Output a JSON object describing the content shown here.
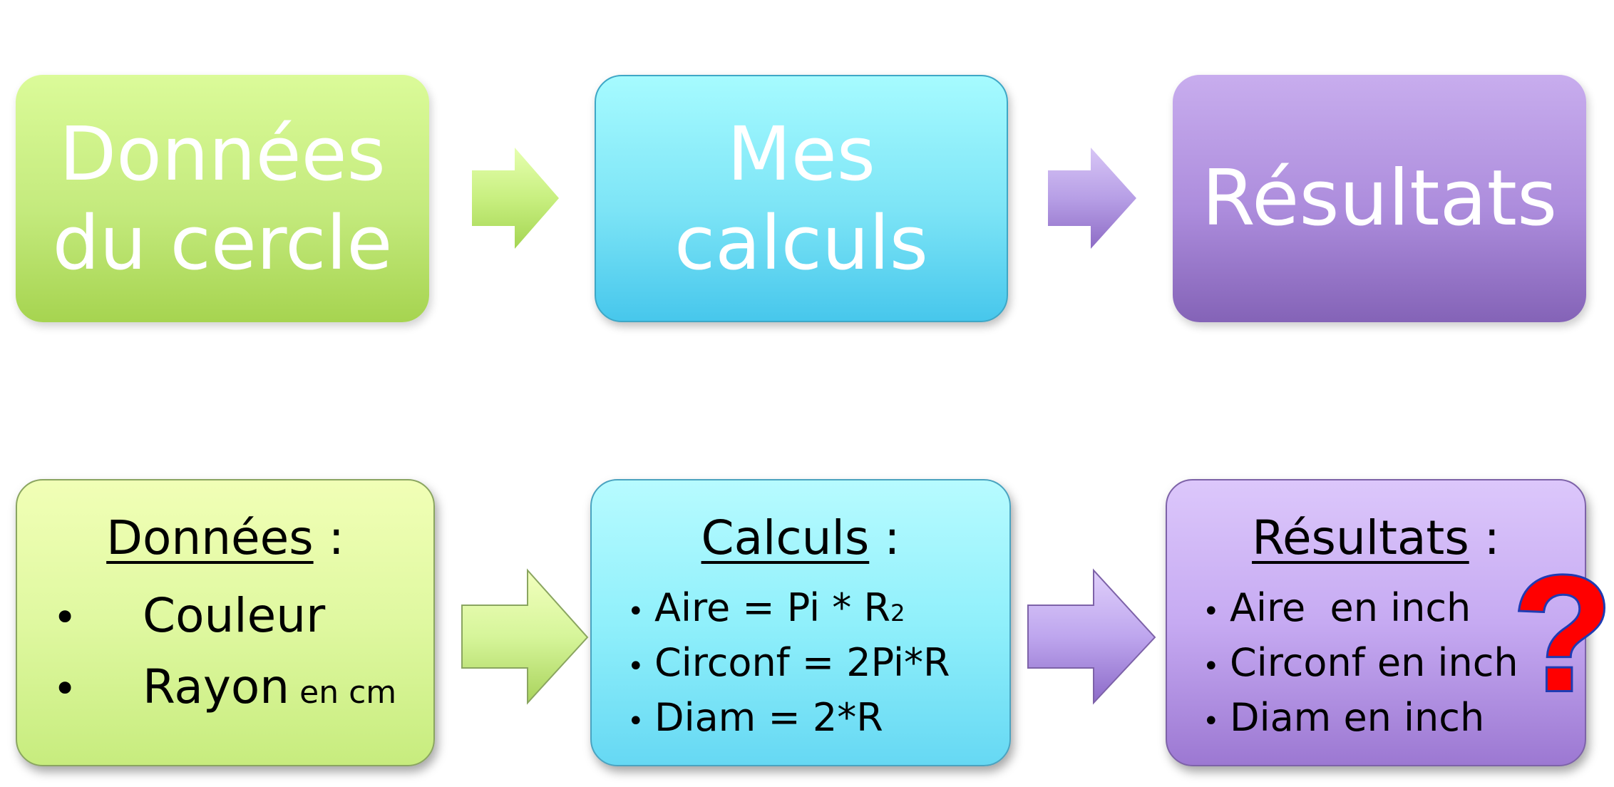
{
  "top_row": {
    "box1": {
      "line1": "Données",
      "line2": "du cercle",
      "color": "#c4ea7d"
    },
    "box2": {
      "line1": "Mes",
      "line2": "calculs",
      "color": "#7ce4f6"
    },
    "box3": {
      "label": "Résultats",
      "color": "#ac8cdc"
    }
  },
  "bottom_row": {
    "donnees": {
      "title": "Données",
      "title_suffix": " :",
      "items": [
        {
          "label": "Couleur",
          "suffix": ""
        },
        {
          "label": "Rayon",
          "suffix": "en cm"
        }
      ],
      "bullet": "•",
      "color": "#dff8a0"
    },
    "calculs": {
      "title": "Calculs",
      "title_suffix": " :",
      "items": [
        {
          "label": "Aire = Pi * R",
          "sup": "2"
        },
        {
          "label": "Circonf = 2Pi*R"
        },
        {
          "label": "Diam = 2*R"
        }
      ],
      "bullet": "•",
      "color": "#90f0fb"
    },
    "resultats": {
      "title": "Résultats",
      "title_suffix": " :",
      "items": [
        {
          "label": "Aire  en inch"
        },
        {
          "label": "Circonf en inch"
        },
        {
          "label": "Diam en inch"
        }
      ],
      "bullet": "•",
      "question_mark": "?",
      "color": "#c6aaf2"
    }
  },
  "arrow_colors": {
    "green": "#c8ef80",
    "purple": "#b79fe6",
    "question": "#ff0000",
    "question_outline": "#1f3bb3"
  }
}
